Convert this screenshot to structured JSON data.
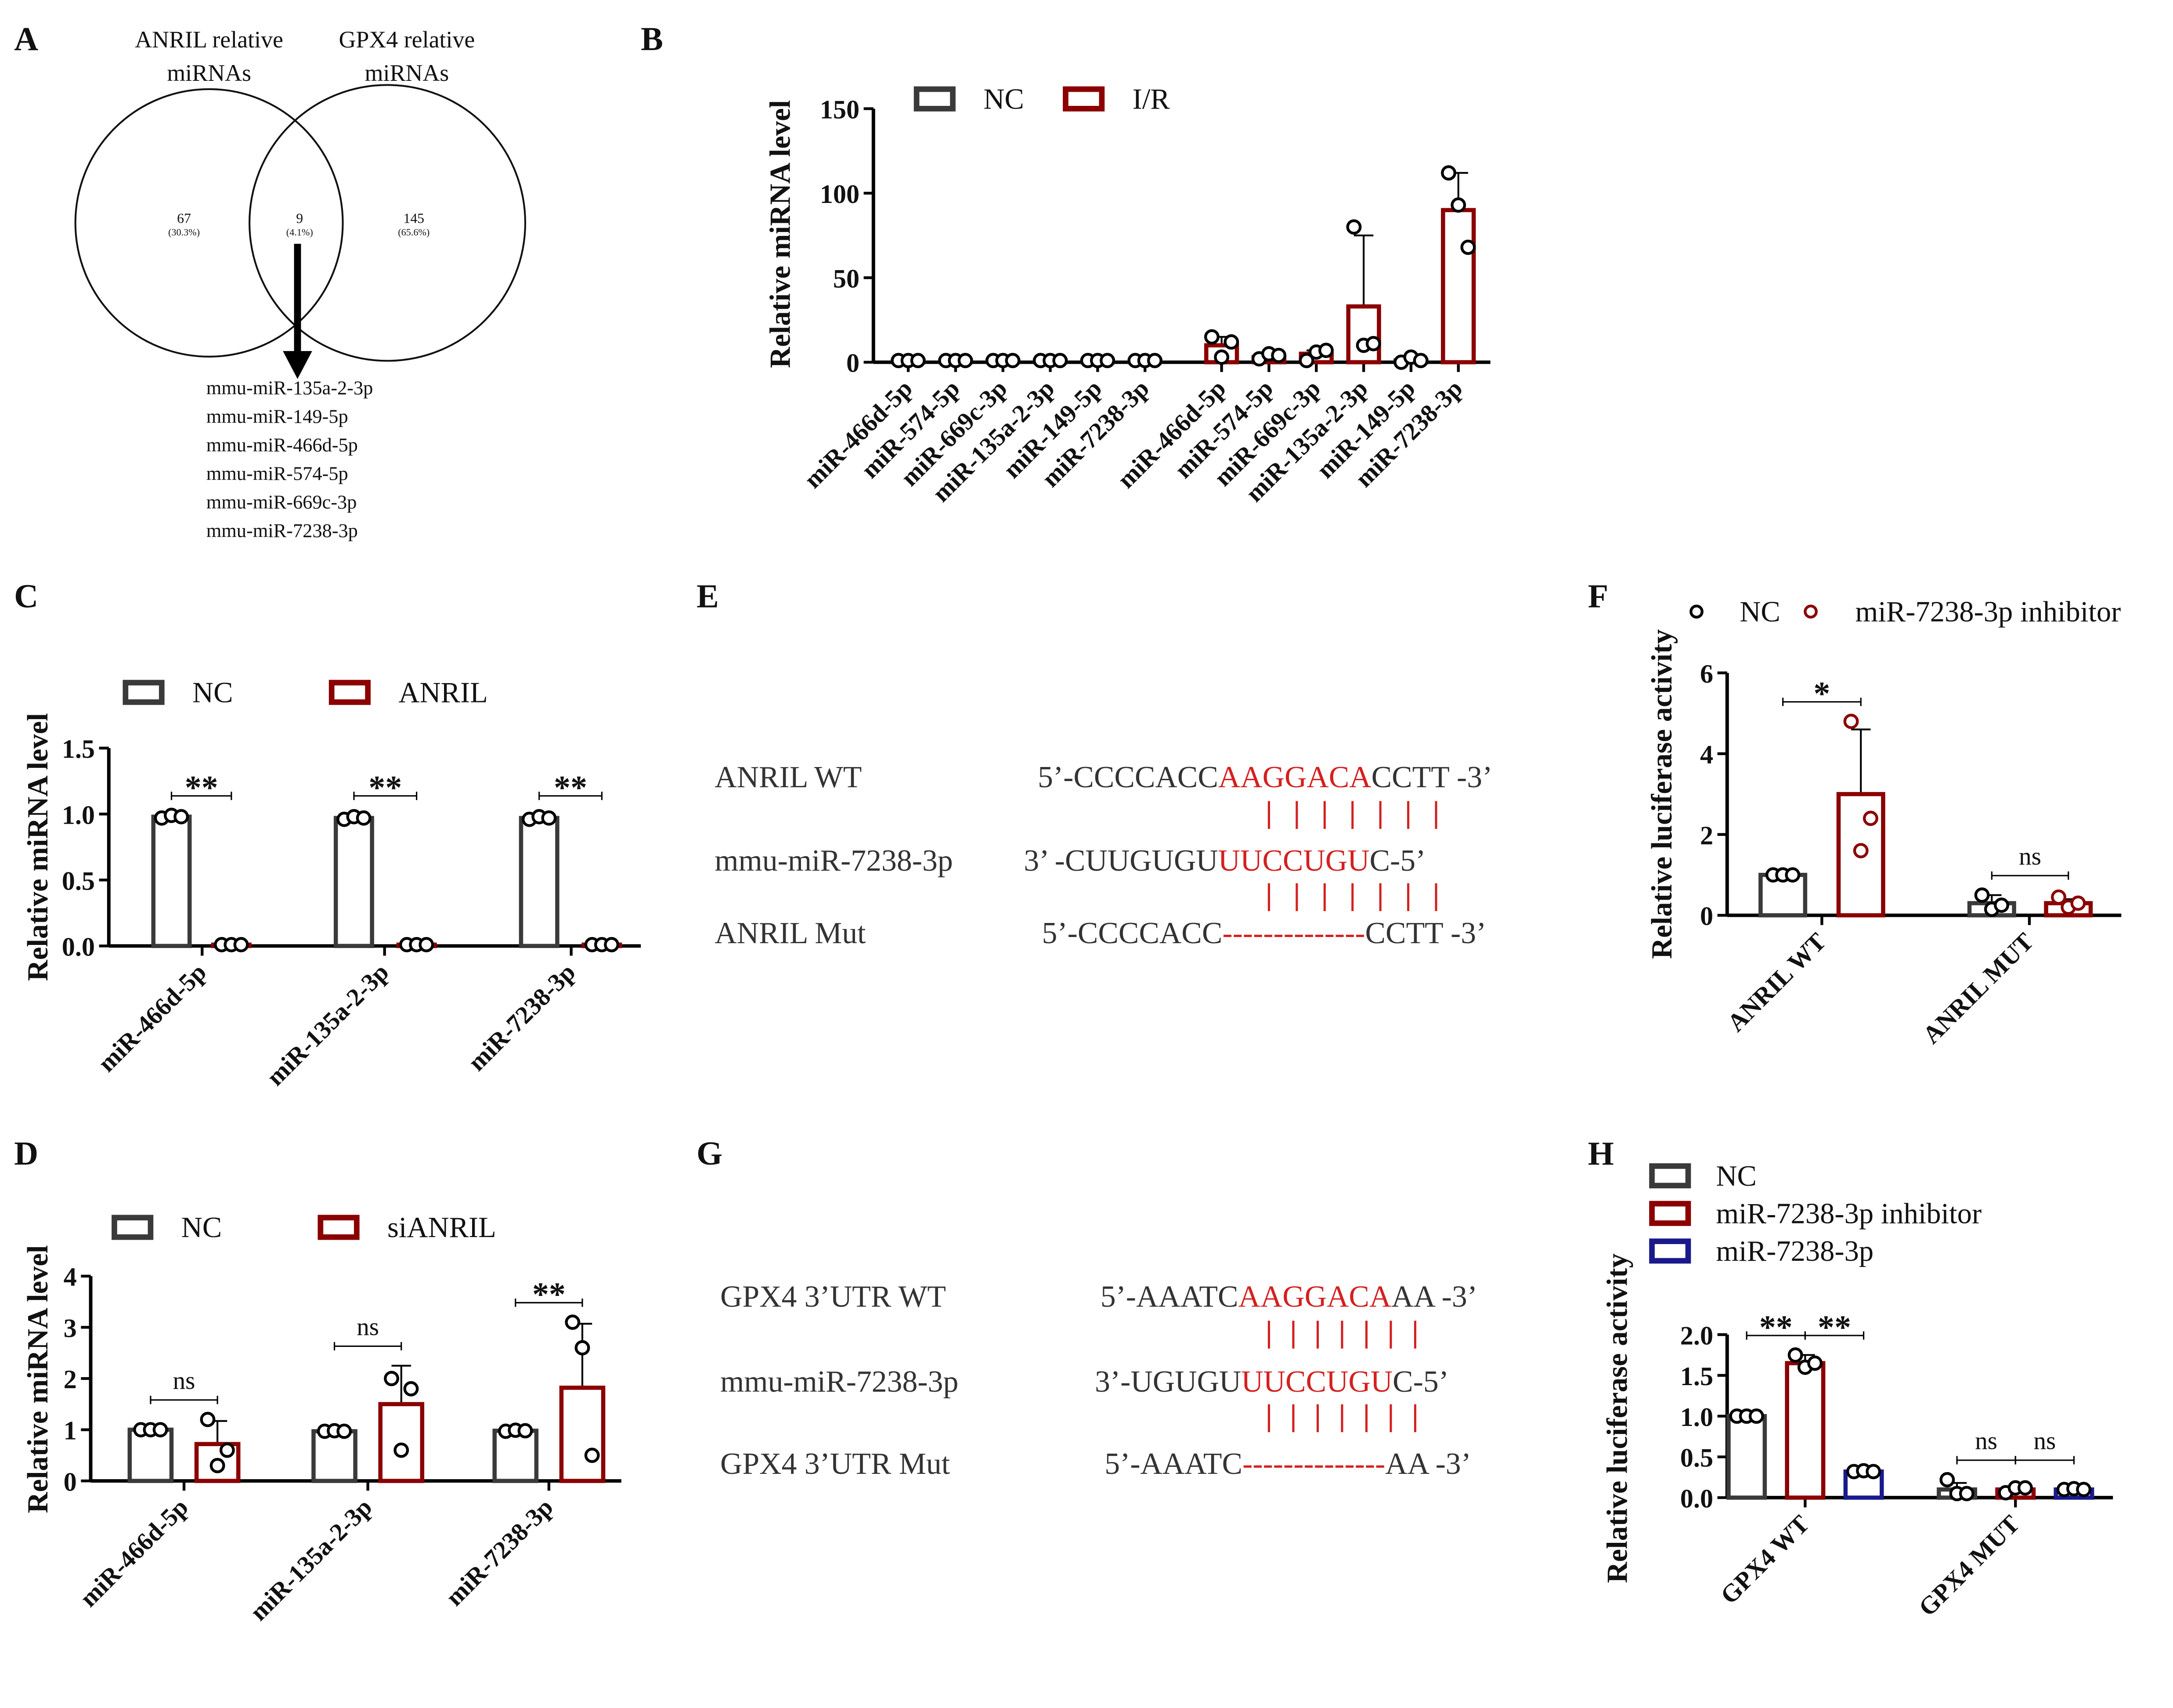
{
  "panels": {
    "A": "A",
    "B": "B",
    "C": "C",
    "D": "D",
    "E": "E",
    "F": "F",
    "G": "G",
    "H": "H"
  },
  "venn": {
    "left_title": [
      "ANRIL relative",
      "miRNAs"
    ],
    "right_title": [
      "GPX4 relative",
      "miRNAs"
    ],
    "left": {
      "count": "67",
      "pct": "(30.3%)"
    },
    "overlap": {
      "count": "9",
      "pct": "(4.1%)"
    },
    "right": {
      "count": "145",
      "pct": "(65.6%)"
    },
    "list": [
      "mmu-miR-135a-2-3p",
      "mmu-miR-149-5p",
      "mmu-miR-466d-5p",
      "mmu-miR-574-5p",
      "mmu-miR-669c-3p",
      "mmu-miR-7238-3p"
    ]
  },
  "seqE": {
    "rows": [
      {
        "label": "ANRIL WT",
        "pre": "5’-CCCCACC",
        "red": "AAGGACA",
        "post": "CCTT -3’"
      },
      {
        "label": "mmu-miR-7238-3p",
        "pre": "3’ -CUUGUGU",
        "red": "UUCCUGU",
        "post": "C-5’"
      },
      {
        "label": "ANRIL Mut",
        "pre": "5’-CCCCACC",
        "red": "--------------",
        "post": "CCTT -3’"
      }
    ]
  },
  "seqG": {
    "rows": [
      {
        "label": "GPX4   3’UTR  WT",
        "pre": "5’-AAATC",
        "red": "AAGGACA",
        "post": "AA -3’"
      },
      {
        "label": "mmu-miR-7238-3p",
        "pre": "3’-UGUGU",
        "red": "UUCCUGU",
        "post": "C-5’"
      },
      {
        "label": "GPX4   3’UTR  Mut",
        "pre": "5’-AAATC",
        "red": "--------------",
        "post": "AA -3’"
      }
    ]
  },
  "colors": {
    "nc": "#3a3a3a",
    "red": "#8b0000",
    "blue": "#1a1a8c",
    "seq_red": "#d42020"
  },
  "chart_data": [
    {
      "id": "B",
      "type": "bar",
      "ylabel": "Relative miRNA level",
      "ylim": [
        0,
        150
      ],
      "ticks": [
        "0",
        "50",
        "100",
        "150"
      ],
      "tickvals": [
        0,
        50,
        100,
        150
      ],
      "legend": "top-left",
      "categories": [
        "miR-466d-5p",
        "miR-574-5p",
        "miR-669c-3p",
        "miR-135a-2-3p",
        "miR-149-5p",
        "miR-7238-3p",
        "miR-466d-5p",
        "miR-574-5p",
        "miR-669c-3p",
        "miR-135a-2-3p",
        "miR-149-5p",
        "miR-7238-3p"
      ],
      "series": [
        {
          "name": "NC",
          "color": "nc",
          "values": [
            1,
            1,
            1,
            1,
            1,
            1,
            null,
            null,
            null,
            null,
            null,
            null
          ],
          "sd": [
            0,
            0,
            0,
            0,
            0,
            0,
            null,
            null,
            null,
            null,
            null,
            null
          ],
          "points": [
            [
              1,
              1,
              1
            ],
            [
              1,
              1,
              1
            ],
            [
              1,
              1,
              1
            ],
            [
              1,
              1,
              1
            ],
            [
              1,
              1,
              1
            ],
            [
              1,
              1,
              1
            ],
            null,
            null,
            null,
            null,
            null,
            null
          ]
        },
        {
          "name": "I/R",
          "color": "red",
          "values": [
            null,
            null,
            null,
            null,
            null,
            null,
            10,
            3,
            5,
            33,
            1,
            90
          ],
          "sd": [
            null,
            null,
            null,
            null,
            null,
            null,
            5,
            1,
            2,
            42,
            1,
            22
          ],
          "points": [
            null,
            null,
            null,
            null,
            null,
            null,
            [
              15,
              3,
              12
            ],
            [
              2,
              5,
              4
            ],
            [
              1,
              6,
              7
            ],
            [
              80,
              10,
              11
            ],
            [
              0,
              3,
              1
            ],
            [
              112,
              93,
              68
            ]
          ]
        }
      ],
      "annotations": []
    },
    {
      "id": "C",
      "type": "bar",
      "ylabel": "Relative miRNA level",
      "ylim": [
        0,
        1.5
      ],
      "ticks": [
        "0.0",
        "0.5",
        "1.0",
        "1.5"
      ],
      "tickvals": [
        0,
        0.5,
        1,
        1.5
      ],
      "legend": "top",
      "categories": [
        "miR-466d-5p",
        "miR-135a-2-3p",
        "miR-7238-3p"
      ],
      "series": [
        {
          "name": "NC",
          "color": "nc",
          "values": [
            0.98,
            0.97,
            0.97
          ],
          "sd": [
            0.01,
            0.02,
            0.02
          ],
          "points": [
            [
              0.97,
              0.99,
              0.98
            ],
            [
              0.96,
              0.98,
              0.97
            ],
            [
              0.96,
              0.98,
              0.97
            ]
          ]
        },
        {
          "name": "ANRIL",
          "color": "red",
          "values": [
            0.01,
            0.01,
            0.01
          ],
          "sd": [
            0,
            0,
            0
          ],
          "points": [
            [
              0.01,
              0.01,
              0.01
            ],
            [
              0.01,
              0.01,
              0.01
            ],
            [
              0.01,
              0.01,
              0.01
            ]
          ]
        }
      ],
      "annotations": [
        {
          "category": 0,
          "text": "**"
        },
        {
          "category": 1,
          "text": "**"
        },
        {
          "category": 2,
          "text": "**"
        }
      ]
    },
    {
      "id": "D",
      "type": "bar",
      "ylabel": "Relative miRNA level",
      "ylim": [
        0,
        4
      ],
      "ticks": [
        "0",
        "1",
        "2",
        "3",
        "4"
      ],
      "tickvals": [
        0,
        1,
        2,
        3,
        4
      ],
      "legend": "top",
      "categories": [
        "miR-466d-5p",
        "miR-135a-2-3p",
        "miR-7238-3p"
      ],
      "series": [
        {
          "name": "NC",
          "color": "nc",
          "values": [
            1,
            0.97,
            0.98
          ],
          "sd": [
            0.02,
            0.03,
            0.03
          ],
          "points": [
            [
              1,
              1,
              1
            ],
            [
              0.97,
              0.98,
              0.97
            ],
            [
              0.97,
              0.99,
              0.98
            ]
          ]
        },
        {
          "name": "siANRIL",
          "color": "red",
          "values": [
            0.72,
            1.5,
            1.82
          ],
          "sd": [
            0.45,
            0.75,
            1.25
          ],
          "points": [
            [
              1.2,
              0.3,
              0.6
            ],
            [
              2.0,
              0.6,
              1.8
            ],
            [
              3.1,
              2.6,
              0.5
            ]
          ]
        }
      ],
      "annotations": [
        {
          "category": 0,
          "text": "ns"
        },
        {
          "category": 1,
          "text": "ns"
        },
        {
          "category": 2,
          "text": "**"
        }
      ]
    },
    {
      "id": "F",
      "type": "bar",
      "ylabel": "Relative luciferase activity",
      "ylim": [
        0,
        6
      ],
      "ticks": [
        "0",
        "2",
        "4",
        "6"
      ],
      "tickvals": [
        0,
        2,
        4,
        6
      ],
      "legend": "top",
      "categories": [
        "ANRIL WT",
        "ANRIL MUT"
      ],
      "series": [
        {
          "name": "NC",
          "color": "nc",
          "values": [
            1,
            0.3
          ],
          "sd": [
            0.02,
            0.2
          ],
          "points": [
            [
              1,
              1,
              1
            ],
            [
              0.5,
              0.15,
              0.25
            ]
          ]
        },
        {
          "name": "miR-7238-3p inhibitor",
          "color": "red",
          "values": [
            3,
            0.3
          ],
          "sd": [
            1.6,
            0.1
          ],
          "points": [
            [
              4.8,
              1.6,
              2.4
            ],
            [
              0.45,
              0.2,
              0.3
            ]
          ]
        }
      ],
      "annotations": [
        {
          "category": 0,
          "text": "*"
        },
        {
          "category": 1,
          "text": "ns"
        }
      ]
    },
    {
      "id": "H",
      "type": "bar",
      "ylabel": "Relative luciferase activity",
      "ylim": [
        0,
        2
      ],
      "ticks": [
        "0.0",
        "0.5",
        "1.0",
        "1.5",
        "2.0"
      ],
      "tickvals": [
        0,
        0.5,
        1,
        1.5,
        2
      ],
      "legend": "top-left",
      "categories": [
        "GPX4 WT",
        "GPX4 MUT"
      ],
      "series": [
        {
          "name": "NC",
          "color": "nc",
          "values": [
            1.0,
            0.1
          ],
          "sd": [
            0.01,
            0.08
          ],
          "points": [
            [
              1,
              1,
              1
            ],
            [
              0.22,
              0.05,
              0.05
            ]
          ]
        },
        {
          "name": "miR-7238-3p inhibitor",
          "color": "red",
          "values": [
            1.65,
            0.1
          ],
          "sd": [
            0.1,
            0.04
          ],
          "points": [
            [
              1.75,
              1.6,
              1.65
            ],
            [
              0.06,
              0.12,
              0.12
            ]
          ]
        },
        {
          "name": "miR-7238-3p",
          "color": "blue",
          "values": [
            0.32,
            0.1
          ],
          "sd": [
            0.02,
            0.02
          ],
          "points": [
            [
              0.32,
              0.33,
              0.32
            ],
            [
              0.1,
              0.11,
              0.1
            ]
          ]
        }
      ],
      "annotations": [
        {
          "category": 0,
          "pair": [
            0,
            1
          ],
          "text": "**"
        },
        {
          "category": 0,
          "pair": [
            1,
            2
          ],
          "text": "**"
        },
        {
          "category": 1,
          "pair": [
            0,
            1
          ],
          "text": "ns"
        },
        {
          "category": 1,
          "pair": [
            1,
            2
          ],
          "text": "ns"
        }
      ]
    }
  ]
}
